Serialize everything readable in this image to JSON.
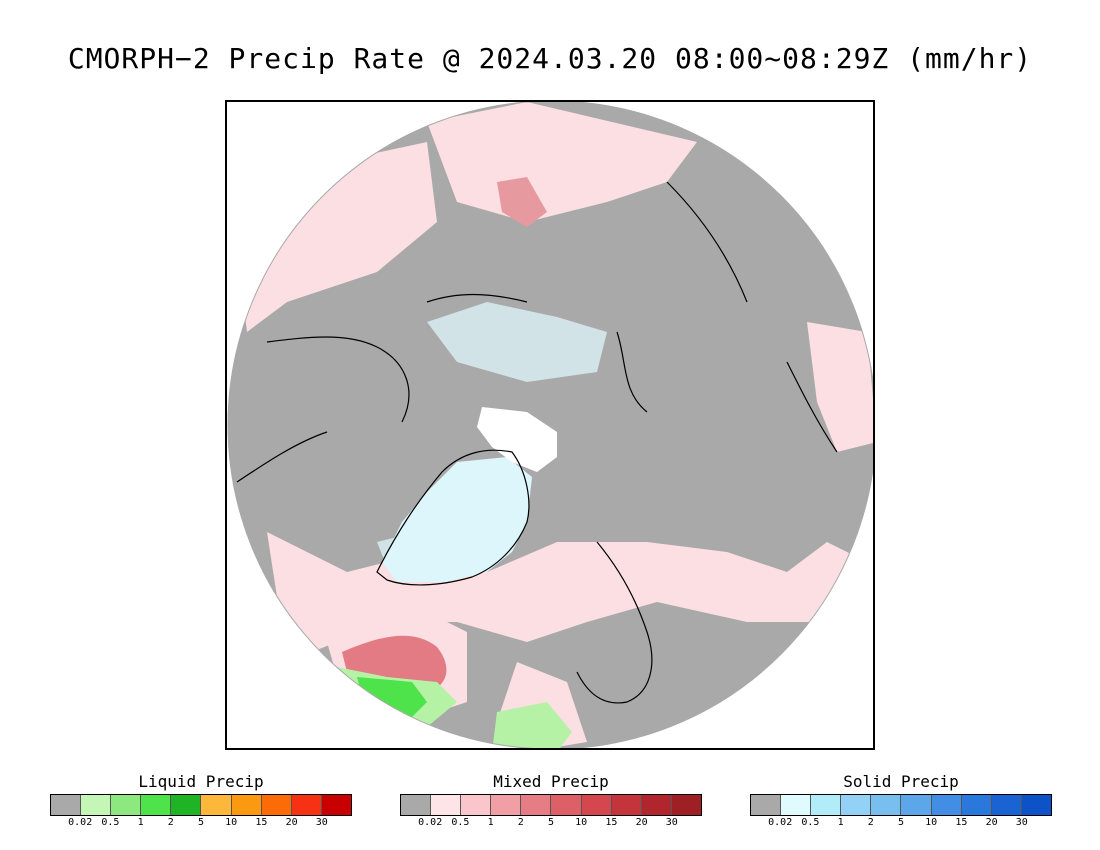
{
  "title": "CMORPH−2 Precip Rate @ 2024.03.20 08:00~08:29Z (mm/hr)",
  "map": {
    "projection": "north polar stereographic",
    "colors": {
      "background_no_precip": "#a9a9a9",
      "snow_light": "#dff7fb",
      "mixed_light": "#fbdfe2",
      "mixed_medium": "#e27b84",
      "liquid_light": "#b6f2a6",
      "liquid_medium": "#4ee34a",
      "greenland_ice": "#ddf6fb",
      "pole_gap": "#ffffff"
    }
  },
  "legends": [
    {
      "title": "Liquid Precip",
      "ticks": [
        "0.02",
        "0.5",
        "1",
        "2",
        "5",
        "10",
        "15",
        "20",
        "30"
      ],
      "colors": [
        "#a9a9a9",
        "#c4f7b5",
        "#8de97f",
        "#4ee34a",
        "#1eb425",
        "#fdb73a",
        "#fb9a10",
        "#fb6b07",
        "#f73214",
        "#c80000"
      ]
    },
    {
      "title": "Mixed Precip",
      "ticks": [
        "0.02",
        "0.5",
        "1",
        "2",
        "5",
        "10",
        "15",
        "20",
        "30"
      ],
      "colors": [
        "#a9a9a9",
        "#fde4e7",
        "#fbc6cb",
        "#f19ea5",
        "#e77d84",
        "#dd6066",
        "#d4474e",
        "#c4343b",
        "#b1262c",
        "#9e1f24"
      ]
    },
    {
      "title": "Solid Precip",
      "ticks": [
        "0.02",
        "0.5",
        "1",
        "2",
        "5",
        "10",
        "15",
        "20",
        "30"
      ],
      "colors": [
        "#a9a9a9",
        "#dffbfd",
        "#b2ecf8",
        "#93d2f6",
        "#78bff0",
        "#5ca6ea",
        "#428ee4",
        "#2b78dc",
        "#1963d3",
        "#0e52c8"
      ]
    }
  ]
}
